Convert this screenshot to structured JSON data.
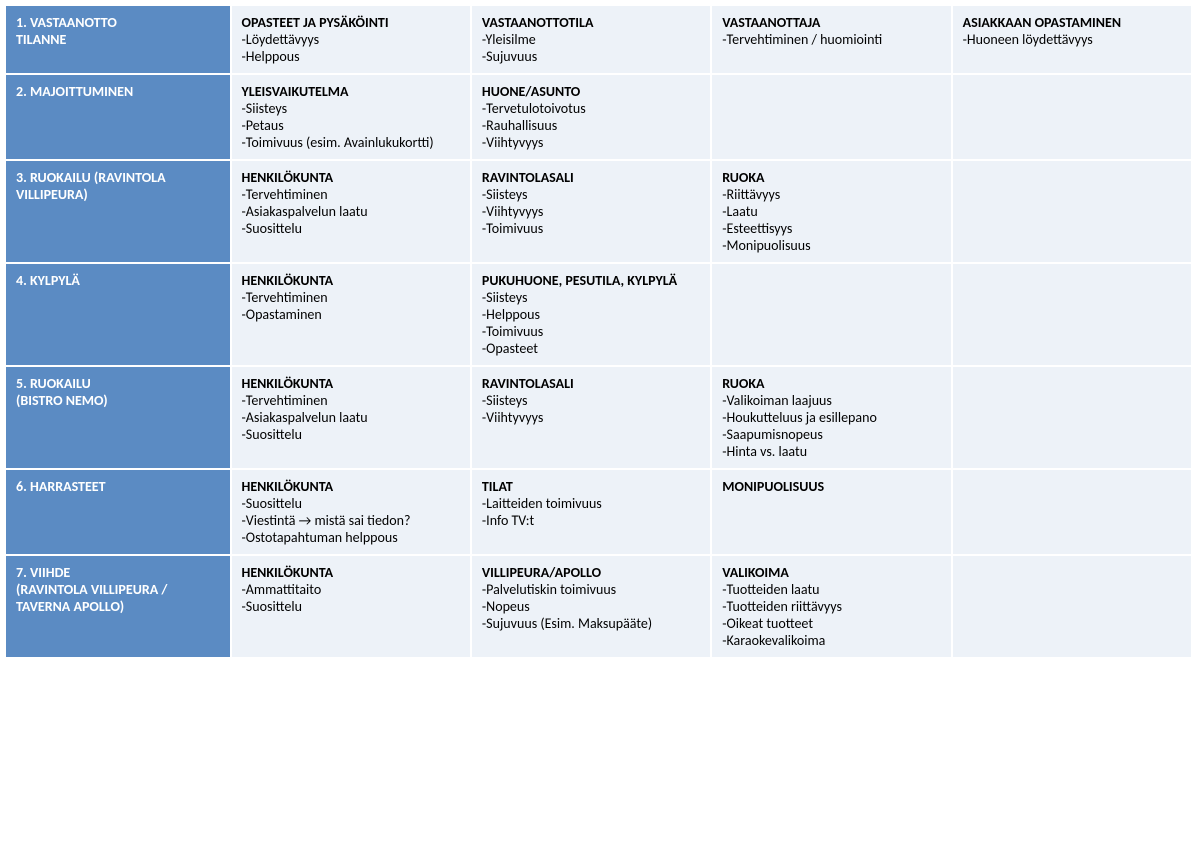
{
  "colors": {
    "header_bg": "#5b8bc3",
    "header_text": "#ffffff",
    "cell_bg": "#edf2f8",
    "border": "#ffffff",
    "text": "#000000"
  },
  "typography": {
    "font_family": "Calibri, Arial, sans-serif",
    "font_size_pt": 11,
    "heading_weight": "bold"
  },
  "layout": {
    "columns": 5,
    "col_widths_pct": [
      19,
      20.25,
      20.25,
      20.25,
      20.25
    ]
  },
  "rows": [
    {
      "header": {
        "main": "1. VASTAANOTTO",
        "sub": "TILANNE"
      },
      "cells": [
        {
          "heading": "OPASTEET JA PYSÄKÖINTI",
          "items": [
            "-Löydettävyys",
            "-Helppous"
          ]
        },
        {
          "heading": "VASTAANOTTOTILA",
          "items": [
            "-Yleisilme",
            "-Sujuvuus"
          ]
        },
        {
          "heading": "VASTAANOTTAJA",
          "items": [
            "-Tervehtiminen / huomiointi"
          ]
        },
        {
          "heading": "ASIAKKAAN OPASTAMINEN",
          "items": [
            "-Huoneen löydettävyys"
          ]
        }
      ]
    },
    {
      "header": {
        "main": "2. MAJOITTUMINEN",
        "sub": ""
      },
      "cells": [
        {
          "heading": "YLEISVAIKUTELMA",
          "items": [
            "-Siisteys",
            "-Petaus",
            "-Toimivuus (esim. Avainlukukortti)"
          ]
        },
        {
          "heading": "HUONE/ASUNTO",
          "items": [
            "-Tervetulotoivotus",
            "-Rauhallisuus",
            "-Viihtyvyys"
          ]
        },
        {
          "heading": "",
          "items": []
        },
        {
          "heading": "",
          "items": []
        }
      ]
    },
    {
      "header": {
        "main": "3. RUOKAILU (RAVINTOLA VILLIPEURA)",
        "sub": ""
      },
      "cells": [
        {
          "heading": "HENKILÖKUNTA",
          "items": [
            "-Tervehtiminen",
            "-Asiakaspalvelun laatu",
            "-Suosittelu"
          ]
        },
        {
          "heading": "RAVINTOLASALI",
          "items": [
            "-Siisteys",
            "-Viihtyvyys",
            "-Toimivuus"
          ]
        },
        {
          "heading": "RUOKA",
          "items": [
            "-Riittävyys",
            "-Laatu",
            "-Esteettisyys",
            "-Monipuolisuus"
          ]
        },
        {
          "heading": "",
          "items": []
        }
      ]
    },
    {
      "header": {
        "main": "4. KYLPYLÄ",
        "sub": ""
      },
      "cells": [
        {
          "heading": "HENKILÖKUNTA",
          "items": [
            "-Tervehtiminen",
            "-Opastaminen"
          ]
        },
        {
          "heading": "PUKUHUONE, PESUTILA, KYLPYLÄ",
          "items": [
            "-Siisteys",
            "-Helppous",
            "-Toimivuus",
            "-Opasteet"
          ]
        },
        {
          "heading": "",
          "items": []
        },
        {
          "heading": "",
          "items": []
        }
      ]
    },
    {
      "header": {
        "main": "5. RUOKAILU",
        "sub": "(BISTRO NEMO)"
      },
      "cells": [
        {
          "heading": "HENKILÖKUNTA",
          "items": [
            "-Tervehtiminen",
            "-Asiakaspalvelun laatu",
            "-Suosittelu"
          ]
        },
        {
          "heading": "RAVINTOLASALI",
          "items": [
            "-Siisteys",
            "-Viihtyvyys"
          ]
        },
        {
          "heading": "RUOKA",
          "items": [
            "-Valikoiman laajuus",
            "-Houkutteluus ja esillepano",
            "-Saapumisnopeus",
            "-Hinta vs. laatu"
          ]
        },
        {
          "heading": "",
          "items": []
        }
      ]
    },
    {
      "header": {
        "main": "6. HARRASTEET",
        "sub": ""
      },
      "cells": [
        {
          "heading": "HENKILÖKUNTA",
          "items": [
            "-Suosittelu",
            "-Viestintä → mistä sai tiedon?",
            "-Ostotapahtuman helppous"
          ]
        },
        {
          "heading": "TILAT",
          "items": [
            "-Laitteiden toimivuus",
            "-Info TV:t"
          ]
        },
        {
          "heading": "MONIPUOLISUUS",
          "items": []
        },
        {
          "heading": "",
          "items": []
        }
      ]
    },
    {
      "header": {
        "main": "7. VIIHDE",
        "sub": "(RAVINTOLA VILLIPEURA / TAVERNA APOLLO)"
      },
      "cells": [
        {
          "heading": "HENKILÖKUNTA",
          "items": [
            "-Ammattitaito",
            "-Suosittelu"
          ]
        },
        {
          "heading": "VILLIPEURA/APOLLO",
          "items": [
            "-Palvelutiskin toimivuus",
            "-Nopeus",
            "-Sujuvuus (Esim. Maksupääte)"
          ]
        },
        {
          "heading": "VALIKOIMA",
          "items": [
            "-Tuotteiden laatu",
            "-Tuotteiden riittävyys",
            "-Oikeat tuotteet",
            "-Karaokevalikoima"
          ]
        },
        {
          "heading": "",
          "items": []
        }
      ]
    }
  ]
}
